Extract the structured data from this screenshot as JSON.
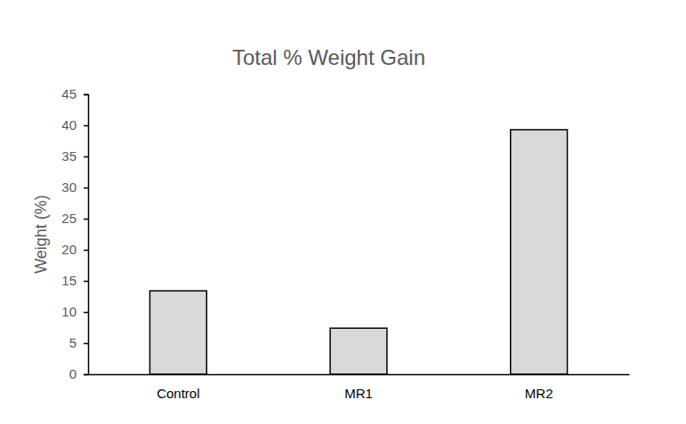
{
  "chart_data": {
    "type": "bar",
    "title": "Total % Weight Gain",
    "y_label": "Weight (%)",
    "categories": [
      "Control",
      "MR1",
      "MR2"
    ],
    "values": [
      13.4,
      7.4,
      39.3
    ],
    "color": "#d9d9d9",
    "ylim": [
      0,
      45
    ],
    "yticks": [
      0,
      5,
      10,
      15,
      20,
      25,
      30,
      35,
      40,
      45
    ],
    "grid": false
  }
}
